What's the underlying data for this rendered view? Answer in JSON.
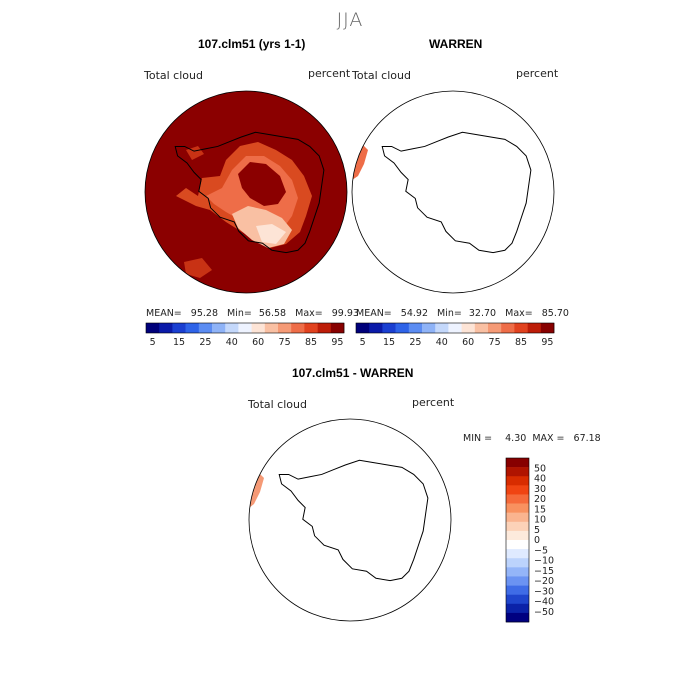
{
  "season_title": "JJA",
  "panels": [
    {
      "title": "107.clm51 (yrs 1-1)",
      "field": "Total cloud",
      "units": "percent",
      "stats": {
        "mean_label": "MEAN=",
        "mean": "95.28",
        "min_label": "Min=",
        "min": "56.58",
        "max_label": "Max=",
        "max": "99.93"
      }
    },
    {
      "title": "WARREN",
      "field": "Total cloud",
      "units": "percent",
      "stats": {
        "mean_label": "MEAN=",
        "mean": "54.92",
        "min_label": "Min=",
        "min": "32.70",
        "max_label": "Max=",
        "max": "85.70"
      }
    },
    {
      "title": "107.clm51 - WARREN",
      "field": "Total cloud",
      "units": "percent",
      "stats": {
        "min_label": "MIN =",
        "min": "4.30",
        "max_label": "MAX =",
        "max": "67.18"
      }
    }
  ],
  "chart_data": [
    {
      "type": "heatmap",
      "title": "107.clm51 (yrs 1-1)",
      "field": "Total cloud",
      "units": "percent",
      "projection": "south polar stereographic",
      "mean": 95.28,
      "min": 56.58,
      "max": 99.93,
      "colorbar": {
        "orientation": "horizontal",
        "tick_labels": [
          "5",
          "15",
          "25",
          "40",
          "60",
          "75",
          "85",
          "95"
        ],
        "levels": [
          5,
          10,
          15,
          20,
          25,
          30,
          40,
          50,
          60,
          70,
          75,
          80,
          85,
          90,
          95
        ]
      }
    },
    {
      "type": "heatmap",
      "title": "WARREN",
      "field": "Total cloud",
      "units": "percent",
      "projection": "south polar stereographic",
      "mean": 54.92,
      "min": 32.7,
      "max": 85.7,
      "colorbar": {
        "orientation": "horizontal",
        "tick_labels": [
          "5",
          "15",
          "25",
          "40",
          "60",
          "75",
          "85",
          "95"
        ],
        "levels": [
          5,
          10,
          15,
          20,
          25,
          30,
          40,
          50,
          60,
          70,
          75,
          80,
          85,
          90,
          95
        ]
      }
    },
    {
      "type": "heatmap",
      "title": "107.clm51 - WARREN",
      "field": "Total cloud",
      "units": "percent",
      "projection": "south polar stereographic",
      "min": 4.3,
      "max": 67.18,
      "colorbar": {
        "orientation": "vertical",
        "tick_labels": [
          "50",
          "40",
          "30",
          "20",
          "15",
          "10",
          "5",
          "0",
          "−5",
          "−10",
          "−15",
          "−20",
          "−30",
          "−40",
          "−50"
        ]
      }
    }
  ],
  "colors": {
    "horizontal_scale": [
      "#00007a",
      "#0a1aa8",
      "#1a3fd1",
      "#2e63e8",
      "#5b8cf2",
      "#8fb3f7",
      "#c4d8fb",
      "#eef3ff",
      "#fde4d6",
      "#f9c0a3",
      "#f59a76",
      "#ee6d48",
      "#e1421f",
      "#bd1d08",
      "#870000"
    ],
    "vertical_scale": [
      "#870000",
      "#b01400",
      "#d82c00",
      "#f04412",
      "#f56a3a",
      "#f8915f",
      "#fab48f",
      "#fcd2b8",
      "#fdeadc",
      "#ffffff",
      "#dfeaff",
      "#bcd3fc",
      "#94b5f8",
      "#6b93f2",
      "#3f6ce6",
      "#1f45cc",
      "#0b22a8",
      "#000080"
    ],
    "model_field": "#8b0000",
    "coastline": "#000000"
  }
}
